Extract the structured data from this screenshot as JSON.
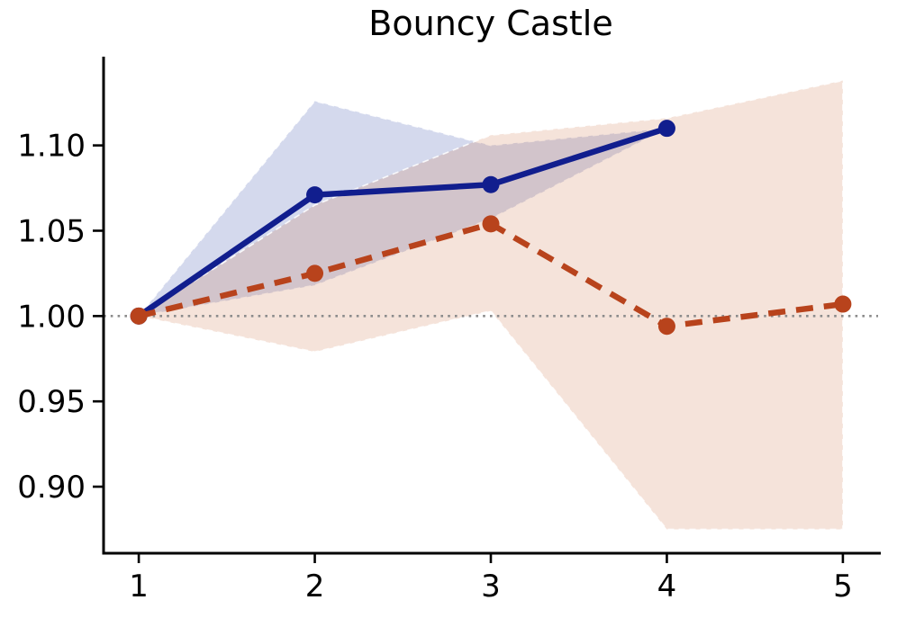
{
  "chart_data": {
    "type": "line",
    "title": "Bouncy Castle",
    "xlabel": "",
    "ylabel": "",
    "grid": false,
    "legend": null,
    "xlim": [
      0.8,
      5.2
    ],
    "ylim": [
      0.861,
      1.152
    ],
    "x_tick_values": [
      1,
      2,
      3,
      4,
      5
    ],
    "x_tick_labels": [
      "1",
      "2",
      "3",
      "4",
      "5"
    ],
    "y_tick_values": [
      0.9,
      0.95,
      1.0,
      1.05,
      1.1
    ],
    "y_tick_labels": [
      "0.90",
      "0.95",
      "1.00",
      "1.05",
      "1.10"
    ],
    "baseline": {
      "y": 1.0,
      "style": "dotted",
      "color": "#8c8c8c"
    },
    "axis_color": "#000000",
    "series": [
      {
        "name": "blue-solid",
        "style": "solid",
        "color": "#111e8e",
        "band_color": "rgba(60, 80, 175, 0.22)",
        "x": [
          1,
          2,
          3,
          4
        ],
        "values": [
          1.0,
          1.071,
          1.077,
          1.11
        ],
        "band_low": [
          1.0,
          1.018,
          1.057,
          1.11
        ],
        "band_high": [
          1.0,
          1.126,
          1.1,
          1.11
        ]
      },
      {
        "name": "orange-dashed",
        "style": "dashed",
        "color": "#b8431c",
        "band_color": "rgba(205, 115, 70, 0.20)",
        "x": [
          1,
          2,
          3,
          4,
          5
        ],
        "values": [
          1.0,
          1.025,
          1.054,
          0.994,
          1.007
        ],
        "band_low": [
          1.0,
          0.979,
          1.003,
          0.875,
          0.875
        ],
        "band_high": [
          1.0,
          1.065,
          1.106,
          1.116,
          1.138
        ]
      }
    ]
  }
}
